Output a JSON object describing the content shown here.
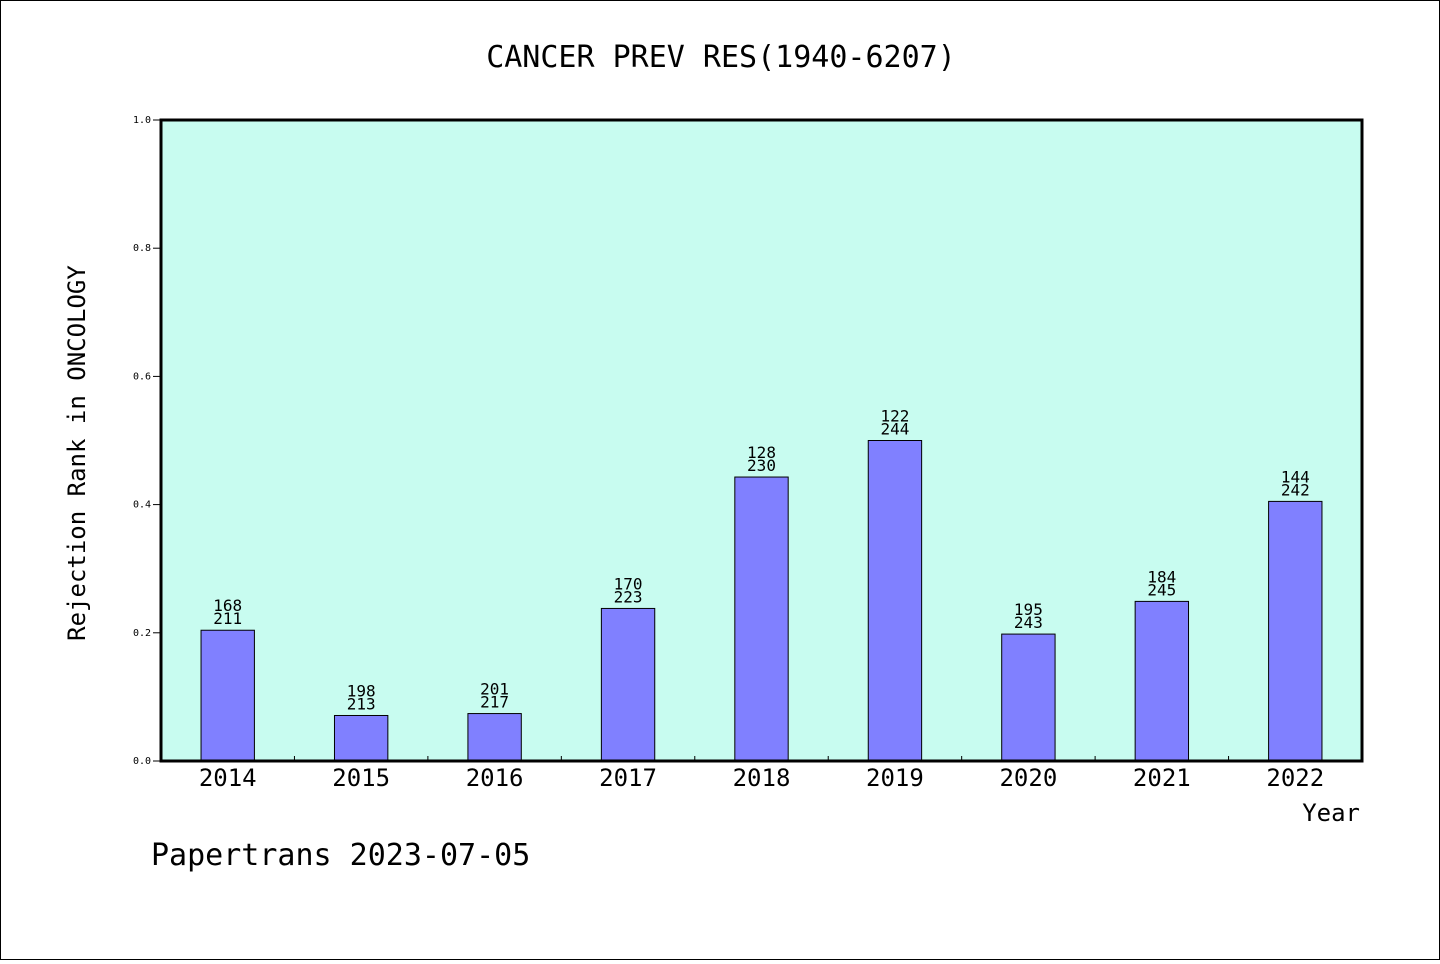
{
  "chart_data": {
    "type": "bar",
    "title": "CANCER PREV RES(1940-6207)",
    "xlabel": "Year",
    "ylabel": "Rejection Rank in ONCOLOGY",
    "ylim": [
      0,
      1.0
    ],
    "yticks": [
      "0.0",
      "0.2",
      "0.4",
      "0.6",
      "0.8",
      "1.0"
    ],
    "grid": false,
    "categories": [
      "2014",
      "2015",
      "2016",
      "2017",
      "2018",
      "2019",
      "2020",
      "2021",
      "2022"
    ],
    "values": [
      0.204,
      0.071,
      0.074,
      0.238,
      0.443,
      0.5,
      0.198,
      0.249,
      0.405
    ],
    "labels_top": [
      "168",
      "198",
      "201",
      "170",
      "128",
      "122",
      "195",
      "184",
      "144"
    ],
    "labels_bottom": [
      "211",
      "213",
      "217",
      "223",
      "230",
      "244",
      "243",
      "245",
      "242"
    ],
    "colors": {
      "plot_bg": "#c8fcf0",
      "bar": "#8080ff"
    }
  },
  "footer": "Papertrans 2023-07-05"
}
